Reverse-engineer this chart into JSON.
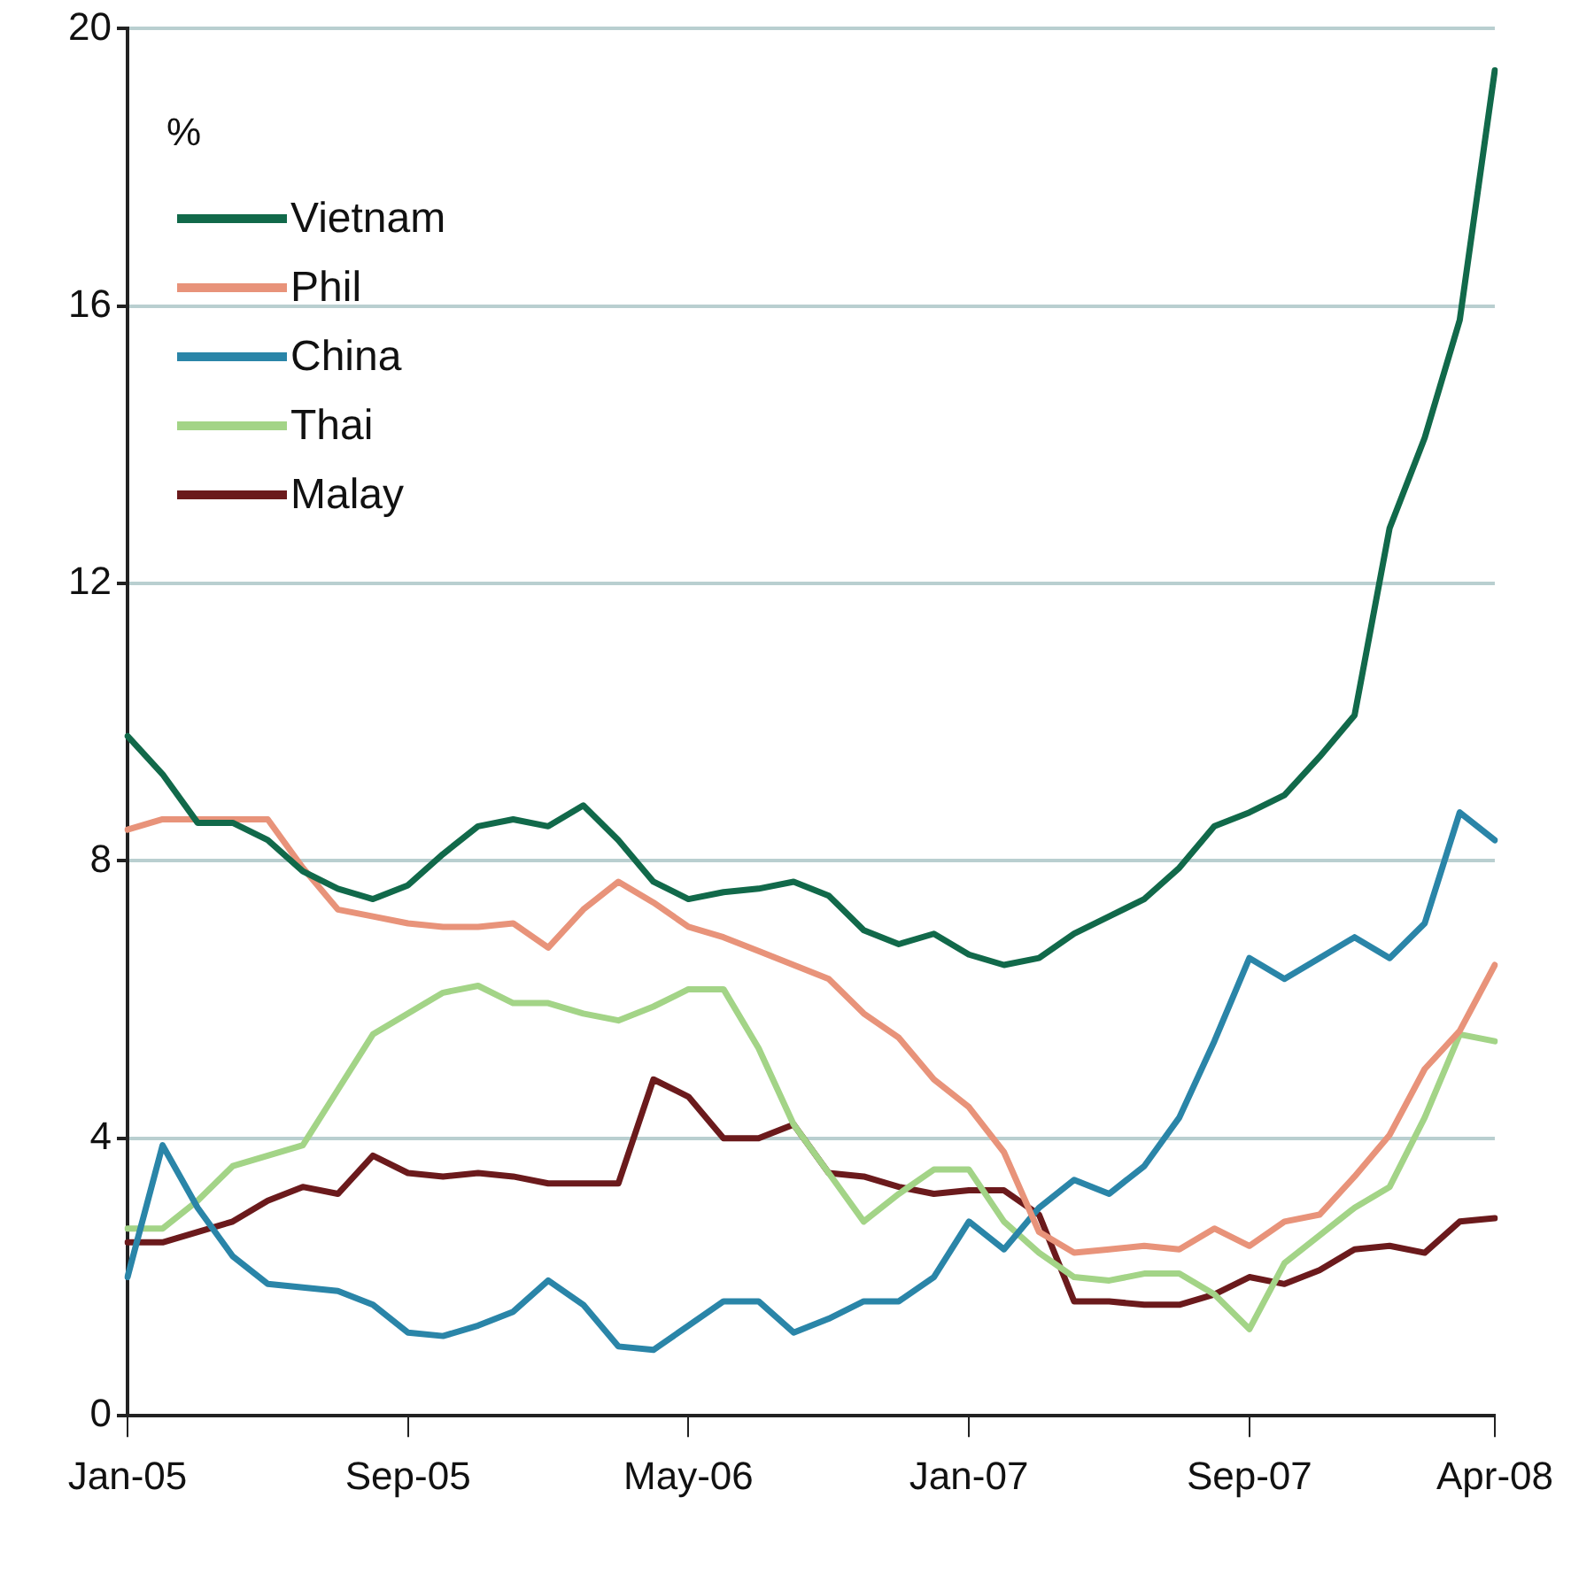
{
  "chart_data": {
    "type": "line",
    "ylabel": "%",
    "categories": [
      "Jan-05",
      null,
      null,
      null,
      null,
      null,
      null,
      null,
      "Sep-05",
      null,
      null,
      null,
      null,
      null,
      null,
      null,
      "May-06",
      null,
      null,
      null,
      null,
      null,
      null,
      null,
      "Jan-07",
      null,
      null,
      null,
      null,
      null,
      null,
      null,
      "Sep-07",
      null,
      null,
      null,
      null,
      null,
      null,
      "Apr-08"
    ],
    "series": [
      {
        "name": "Vietnam",
        "color": "#11694a",
        "values": [
          9.8,
          9.25,
          8.55,
          8.55,
          8.3,
          7.85,
          7.6,
          7.45,
          7.65,
          8.1,
          8.5,
          8.6,
          8.5,
          8.8,
          8.3,
          7.7,
          7.45,
          7.55,
          7.6,
          7.7,
          7.5,
          7.0,
          6.8,
          6.95,
          6.65,
          6.5,
          6.6,
          6.95,
          7.2,
          7.45,
          7.9,
          8.5,
          8.7,
          8.95,
          9.5,
          10.1,
          12.8,
          14.1,
          15.8,
          19.4
        ]
      },
      {
        "name": "Phil",
        "color": "#e8937a",
        "values": [
          8.45,
          8.6,
          8.6,
          8.6,
          8.6,
          7.9,
          7.3,
          7.2,
          7.1,
          7.05,
          7.05,
          7.1,
          6.75,
          7.3,
          7.7,
          7.4,
          7.05,
          6.9,
          6.7,
          6.5,
          6.3,
          5.8,
          5.45,
          4.85,
          4.45,
          3.8,
          2.65,
          2.35,
          2.4,
          2.45,
          2.4,
          2.7,
          2.45,
          2.8,
          2.9,
          3.45,
          4.05,
          5.0,
          5.55,
          6.5
        ]
      },
      {
        "name": "China",
        "color": "#2a85a8",
        "values": [
          2.0,
          3.9,
          3.0,
          2.3,
          1.9,
          1.85,
          1.8,
          1.6,
          1.2,
          1.15,
          1.3,
          1.5,
          1.95,
          1.6,
          1.0,
          0.95,
          1.3,
          1.65,
          1.65,
          1.2,
          1.4,
          1.65,
          1.65,
          2.0,
          2.8,
          2.4,
          3.0,
          3.4,
          3.2,
          3.6,
          4.3,
          5.4,
          6.6,
          6.3,
          6.6,
          6.9,
          6.6,
          7.1,
          8.7,
          8.3
        ]
      },
      {
        "name": "Thai",
        "color": "#a3d487",
        "values": [
          2.7,
          2.7,
          3.1,
          3.6,
          3.75,
          3.9,
          4.7,
          5.5,
          5.8,
          6.1,
          6.2,
          5.95,
          5.95,
          5.8,
          5.7,
          5.9,
          6.15,
          6.15,
          5.3,
          4.2,
          3.5,
          2.8,
          3.2,
          3.55,
          3.55,
          2.8,
          2.35,
          2.0,
          1.95,
          2.05,
          2.05,
          1.75,
          1.25,
          2.2,
          2.6,
          3.0,
          3.3,
          4.3,
          5.5,
          5.4
        ]
      },
      {
        "name": "Malay",
        "color": "#6b1a1c",
        "values": [
          2.5,
          2.5,
          2.65,
          2.8,
          3.1,
          3.3,
          3.2,
          3.75,
          3.5,
          3.45,
          3.5,
          3.45,
          3.35,
          3.35,
          3.35,
          4.85,
          4.6,
          4.0,
          4.0,
          4.2,
          3.5,
          3.45,
          3.3,
          3.2,
          3.25,
          3.25,
          2.9,
          1.65,
          1.65,
          1.6,
          1.6,
          1.75,
          2.0,
          1.9,
          2.1,
          2.4,
          2.45,
          2.35,
          2.8,
          2.85
        ]
      }
    ],
    "ylim": [
      0,
      20
    ],
    "yticks": [
      0,
      4,
      8,
      12,
      16,
      20
    ],
    "grid": "y",
    "legend": "top left",
    "marker": "none",
    "line_style": "solid"
  }
}
